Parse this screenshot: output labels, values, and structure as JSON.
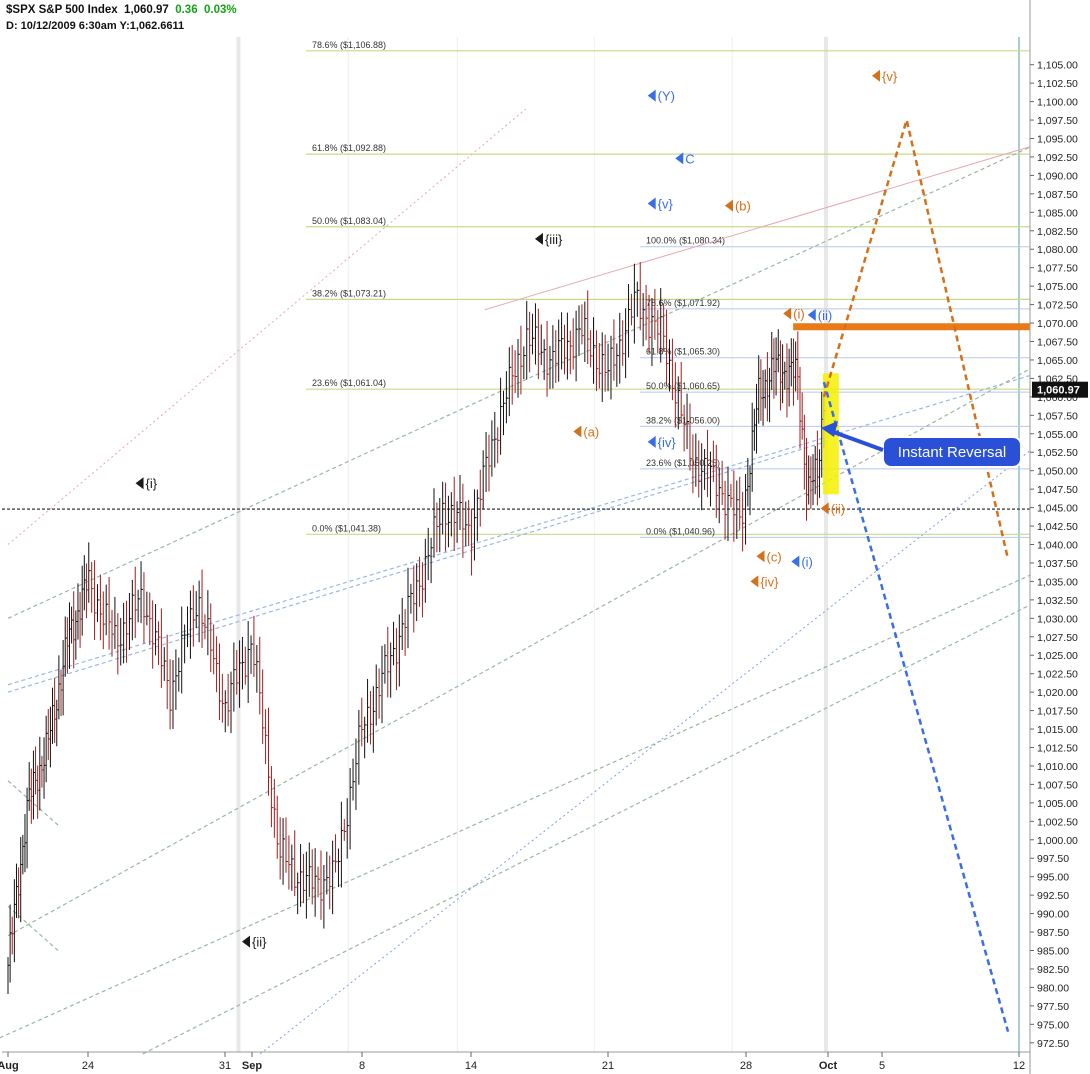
{
  "header": {
    "symbol": "$SPX S&P 500 Index",
    "last": "1,060.97",
    "change": "0.36",
    "change_pct": "0.03%",
    "info": "D: 10/12/2009   6:30am Y:1,062.6611"
  },
  "colors": {
    "background": "#ffffff",
    "bar": "#a01e1e",
    "bar_up": "#111111",
    "black_label": "#1a1a1a",
    "orange": "#d4701a",
    "blue": "#3a6ee8",
    "fib_line": "#c8d98a",
    "channel_green": "#9ab8a0",
    "pink_line": "#e8a8b0",
    "yellow_box": "#f5f000",
    "callout_bg": "#2a50d8"
  },
  "chart_data": {
    "type": "bar",
    "title": "$SPX S&P 500 Index",
    "ylim": [
      971.25,
      1108.75
    ],
    "grid": false,
    "yticks": [
      972.5,
      975,
      977.5,
      980,
      982.5,
      985,
      987.5,
      990,
      992.5,
      995,
      997.5,
      1000,
      1002.5,
      1005,
      1007.5,
      1010,
      1012.5,
      1015,
      1017.5,
      1020,
      1022.5,
      1025,
      1027.5,
      1030,
      1032.5,
      1035,
      1037.5,
      1040,
      1042.5,
      1045,
      1047.5,
      1050,
      1052.5,
      1055,
      1057.5,
      1060,
      1062.5,
      1065,
      1067.5,
      1070,
      1072.5,
      1075,
      1077.5,
      1080,
      1082.5,
      1085,
      1087.5,
      1090,
      1092.5,
      1095,
      1097.5,
      1100,
      1102.5,
      1105
    ],
    "last_price_label": "1,060.97",
    "last_price": 1060.97,
    "x_dates": [
      {
        "label": "Aug",
        "t": 0
      },
      {
        "label": "24",
        "t": 4
      },
      {
        "label": "31",
        "t": 9
      },
      {
        "label": "Sep",
        "t": 10
      },
      {
        "label": "8",
        "t": 14
      },
      {
        "label": "14",
        "t": 18
      },
      {
        "label": "21",
        "t": 23
      },
      {
        "label": "28",
        "t": 28
      },
      {
        "label": "Oct",
        "t": 32
      },
      {
        "label": "5",
        "t": 34
      },
      {
        "label": "12",
        "t": 39
      }
    ],
    "price_waypoints": [
      [
        0,
        983
      ],
      [
        1,
        1005
      ],
      [
        2,
        1013
      ],
      [
        3,
        1027
      ],
      [
        4,
        1035
      ],
      [
        5,
        1027
      ],
      [
        6,
        1033
      ],
      [
        7,
        1020
      ],
      [
        8,
        1033
      ],
      [
        9,
        1018
      ],
      [
        10,
        1027
      ],
      [
        11,
        998
      ],
      [
        12,
        994
      ],
      [
        13,
        995
      ],
      [
        14,
        1015
      ],
      [
        15,
        1024
      ],
      [
        16,
        1034
      ],
      [
        17,
        1045
      ],
      [
        18,
        1042
      ],
      [
        19,
        1057
      ],
      [
        20,
        1068
      ],
      [
        21,
        1065
      ],
      [
        22,
        1069
      ],
      [
        23,
        1063
      ],
      [
        24,
        1073
      ],
      [
        25,
        1068
      ],
      [
        26,
        1052
      ],
      [
        27,
        1048
      ],
      [
        27.8,
        1043
      ],
      [
        28.6,
        1060
      ],
      [
        29.4,
        1064
      ],
      [
        30.5,
        1063
      ],
      [
        31,
        1047
      ],
      [
        31.5,
        1050
      ],
      [
        31.8,
        1060
      ]
    ],
    "fib_levels": [
      {
        "label": "78.6% ($1,106.88)",
        "value": 1106.88
      },
      {
        "label": "61.8% ($1,092.88)",
        "value": 1092.88
      },
      {
        "label": "50.0% ($1,083.04)",
        "value": 1083.04
      },
      {
        "label": "38.2% ($1,073.21)",
        "value": 1073.21
      },
      {
        "label": "23.6% ($1,061.04)",
        "value": 1061.04
      },
      {
        "label": "0.0% ($1,041.38)",
        "value": 1041.38
      }
    ],
    "fib_levels_2": [
      {
        "label": "100.0% ($1,080.34)",
        "value": 1080.34
      },
      {
        "label": "78.6% ($1,071.92)",
        "value": 1071.92
      },
      {
        "label": "61.8% ($1,065.30)",
        "value": 1065.3
      },
      {
        "label": "50.0% ($1,060.65)",
        "value": 1060.65
      },
      {
        "label": "38.2% ($1,056.00)",
        "value": 1056.0
      },
      {
        "label": "23.6% ($1,050.25)",
        "value": 1050.25
      },
      {
        "label": "0.0% ($1,040.96)",
        "value": 1040.96
      }
    ],
    "wave_labels": [
      {
        "text": "{i}",
        "color": "black",
        "t": 6.1,
        "price": 1048.3
      },
      {
        "text": "{ii}",
        "color": "black",
        "t": 10,
        "price": 986.2
      },
      {
        "text": "{iii}",
        "color": "black",
        "t": 20.7,
        "price": 1081.4
      },
      {
        "text": "(Y)",
        "color": "blue",
        "t": 24.8,
        "price": 1100.8
      },
      {
        "text": "C",
        "color": "blue",
        "t": 25.8,
        "price": 1092.3
      },
      {
        "text": "{v}",
        "color": "blue",
        "t": 24.8,
        "price": 1086.2
      },
      {
        "text": "{iv}",
        "color": "blue",
        "t": 24.8,
        "price": 1053.9
      },
      {
        "text": "(a)",
        "color": "orange",
        "t": 22.1,
        "price": 1055.3
      },
      {
        "text": "(b)",
        "color": "orange",
        "t": 27.6,
        "price": 1085.9
      },
      {
        "text": "(i)",
        "color": "orange",
        "t": 30.3,
        "price": 1071.3
      },
      {
        "text": "(ii)",
        "color": "blue",
        "t": 31.5,
        "price": 1071.1
      },
      {
        "text": "(ii)",
        "color": "orange",
        "t": 32.1,
        "price": 1044.9
      },
      {
        "text": "(c)",
        "color": "orange",
        "t": 29,
        "price": 1038.4
      },
      {
        "text": "{iv}",
        "color": "orange",
        "t": 28.7,
        "price": 1035.0
      },
      {
        "text": "(i)",
        "color": "blue",
        "t": 30.7,
        "price": 1037.7
      },
      {
        "text": "{v}",
        "color": "orange",
        "t": 34,
        "price": 1103.5
      }
    ],
    "projections": {
      "orange_up": [
        [
          31.8,
          1060
        ],
        [
          34.9,
          1097.5
        ],
        [
          38.6,
          1038
        ]
      ],
      "blue_down": [
        [
          31.8,
          1062
        ],
        [
          38.6,
          974
        ]
      ],
      "resistance": {
        "t1": 30.3,
        "t2": 39.5,
        "price": 1069.5
      },
      "support_dashed": {
        "price": 1044.8
      },
      "yellow_box": {
        "t1": 31.75,
        "t2": 32.4,
        "p1": 1063.2,
        "p2": 1046.8
      }
    },
    "callout": "Instant Reversal"
  }
}
